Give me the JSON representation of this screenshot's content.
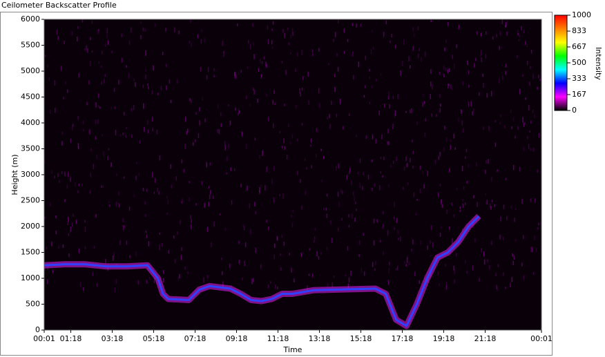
{
  "chart_data": {
    "type": "heatmap",
    "title": "Ceilometer Backscatter Profile",
    "x_label": "Time",
    "y_label": "Height (m)",
    "xlim": [
      1,
      1441
    ],
    "xticks": [
      {
        "value": 1,
        "label": "00:01"
      },
      {
        "value": 78,
        "label": "01:18"
      },
      {
        "value": 198,
        "label": "03:18"
      },
      {
        "value": 318,
        "label": "05:18"
      },
      {
        "value": 438,
        "label": "07:18"
      },
      {
        "value": 558,
        "label": "09:18"
      },
      {
        "value": 678,
        "label": "11:18"
      },
      {
        "value": 798,
        "label": "13:18"
      },
      {
        "value": 918,
        "label": "15:18"
      },
      {
        "value": 1038,
        "label": "17:18"
      },
      {
        "value": 1158,
        "label": "19:18"
      },
      {
        "value": 1278,
        "label": "21:18"
      },
      {
        "value": 1441,
        "label": "00:01"
      }
    ],
    "ylim": [
      0,
      6000
    ],
    "yticks": [
      0,
      500,
      1000,
      1500,
      2000,
      2500,
      3000,
      3500,
      4000,
      4500,
      5000,
      5500,
      6000
    ],
    "series": [
      {
        "color": "#e020f0",
        "x": [
          1,
          60,
          120,
          180,
          240,
          300,
          330,
          345,
          360,
          420,
          450,
          480,
          540,
          570,
          600,
          630,
          660,
          690,
          720,
          780,
          840,
          960,
          990,
          1020,
          1050,
          1080,
          1110,
          1140,
          1170,
          1200,
          1230,
          1260
        ],
        "values": [
          1250,
          1270,
          1270,
          1230,
          1230,
          1250,
          1000,
          700,
          600,
          580,
          780,
          850,
          800,
          700,
          580,
          560,
          600,
          700,
          700,
          770,
          780,
          800,
          700,
          200,
          80,
          500,
          1000,
          1400,
          1500,
          1700,
          2000,
          2200
        ]
      }
    ],
    "colorbar": {
      "label": "Intensity",
      "clim": [
        0,
        1000
      ],
      "ticks": [
        0,
        167,
        333,
        500,
        667,
        833,
        1000
      ],
      "colors": [
        "#000000",
        "#ff00ff",
        "#0000ff",
        "#00ffff",
        "#00ff00",
        "#ffff00",
        "#ff8000",
        "#ff0000"
      ]
    }
  }
}
